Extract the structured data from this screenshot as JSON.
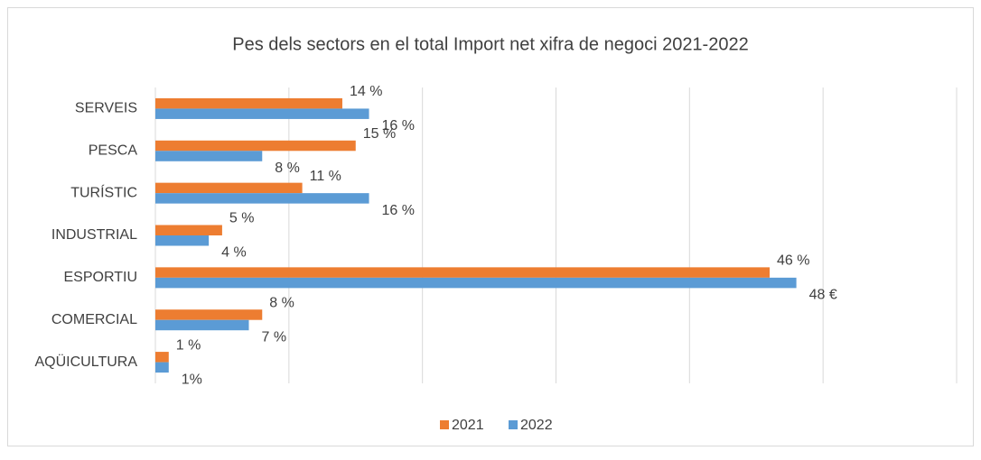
{
  "chart_data": {
    "type": "bar",
    "orientation": "horizontal",
    "title": "Pes dels sectors en el total Import net xifra de negoci 2021-2022",
    "categories": [
      "SERVEIS",
      "PESCA",
      "TURÍSTIC",
      "INDUSTRIAL",
      "ESPORTIU",
      "COMERCIAL",
      "AQÜICULTURA"
    ],
    "series": [
      {
        "name": "2021",
        "color": "#ED7D31",
        "values": [
          14,
          15,
          11,
          5,
          46,
          8,
          1
        ],
        "value_labels": [
          "14 %",
          "15 %",
          "11 %",
          "5 %",
          "46 %",
          "8 %",
          "1 %"
        ]
      },
      {
        "name": "2022",
        "color": "#5B9BD5",
        "values": [
          16,
          8,
          16,
          4,
          48,
          7,
          1
        ],
        "value_labels": [
          "16 %",
          "8 %",
          "16 %",
          "4 %",
          "48 €",
          "7 %",
          "1%"
        ]
      }
    ],
    "xlim": [
      0,
      60
    ],
    "xticks": [
      0,
      10,
      20,
      30,
      40,
      50,
      60
    ],
    "grid": true,
    "legend": "bottom"
  }
}
